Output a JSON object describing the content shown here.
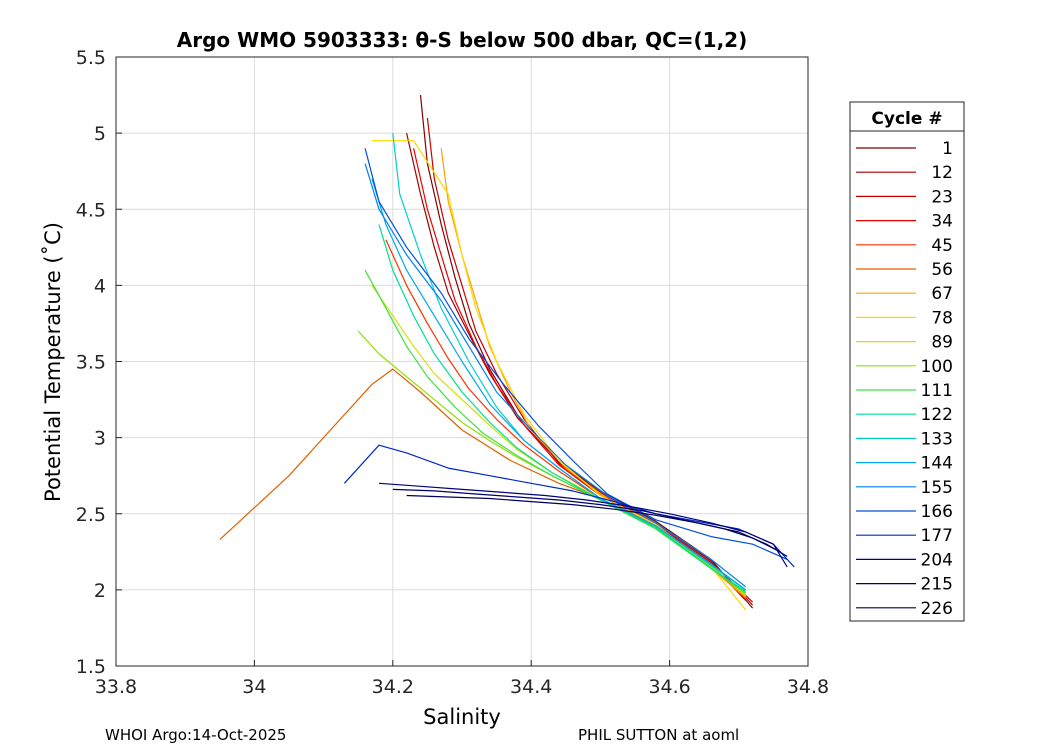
{
  "chart_data": {
    "type": "line",
    "title": "Argo WMO 5903333: θ-S below 500 dbar,  QC=(1,2)",
    "xlabel": "Salinity",
    "ylabel": "Potential Temperature (˚C)",
    "xlim": [
      33.8,
      34.8
    ],
    "ylim": [
      1.5,
      5.5
    ],
    "xticks": [
      "33.8",
      "34",
      "34.2",
      "34.4",
      "34.6",
      "34.8"
    ],
    "yticks": [
      "1.5",
      "2",
      "2.5",
      "3",
      "3.5",
      "4",
      "4.5",
      "5",
      "5.5"
    ],
    "grid": true,
    "legend_position": "right",
    "legend_title": "Cycle #",
    "series": [
      {
        "name": "1",
        "color": "#800000",
        "x": [
          34.24,
          34.25,
          34.27,
          34.29,
          34.31,
          34.34,
          34.38,
          34.44,
          34.5,
          34.58,
          34.66,
          34.72
        ],
        "y": [
          5.25,
          4.8,
          4.4,
          4.05,
          3.75,
          3.45,
          3.15,
          2.85,
          2.65,
          2.45,
          2.2,
          1.88
        ]
      },
      {
        "name": "12",
        "color": "#a00000",
        "x": [
          34.22,
          34.24,
          34.26,
          34.28,
          34.31,
          34.34,
          34.38,
          34.44,
          34.5,
          34.58,
          34.66,
          34.72
        ],
        "y": [
          5.0,
          4.6,
          4.25,
          3.95,
          3.68,
          3.42,
          3.13,
          2.84,
          2.64,
          2.44,
          2.19,
          1.9
        ]
      },
      {
        "name": "23",
        "color": "#c80000",
        "x": [
          34.25,
          34.26,
          34.28,
          34.3,
          34.32,
          34.35,
          34.39,
          34.44,
          34.5,
          34.58,
          34.66,
          34.72
        ],
        "y": [
          5.1,
          4.7,
          4.3,
          4.0,
          3.7,
          3.42,
          3.12,
          2.83,
          2.63,
          2.43,
          2.18,
          1.92
        ]
      },
      {
        "name": "34",
        "color": "#f00000",
        "x": [
          34.23,
          34.25,
          34.27,
          34.29,
          34.32,
          34.35,
          34.39,
          34.44,
          34.5,
          34.58,
          34.66,
          34.71
        ],
        "y": [
          4.9,
          4.5,
          4.2,
          3.9,
          3.6,
          3.35,
          3.08,
          2.82,
          2.62,
          2.42,
          2.17,
          1.93
        ]
      },
      {
        "name": "45",
        "color": "#ff3000",
        "x": [
          34.19,
          34.22,
          34.25,
          34.28,
          34.31,
          34.35,
          34.39,
          34.44,
          34.5,
          34.58,
          34.66,
          34.71
        ],
        "y": [
          4.3,
          4.0,
          3.75,
          3.52,
          3.32,
          3.12,
          2.95,
          2.78,
          2.6,
          2.41,
          2.16,
          1.95
        ]
      },
      {
        "name": "56",
        "color": "#e06000",
        "x": [
          33.95,
          34.05,
          34.12,
          34.17,
          34.2,
          34.24,
          34.3,
          34.37,
          34.44,
          34.5,
          34.58,
          34.66,
          34.71
        ],
        "y": [
          2.33,
          2.75,
          3.1,
          3.35,
          3.45,
          3.3,
          3.05,
          2.85,
          2.7,
          2.6,
          2.42,
          2.15,
          1.96
        ]
      },
      {
        "name": "67",
        "color": "#ffa000",
        "x": [
          34.27,
          34.28,
          34.3,
          34.32,
          34.34,
          34.37,
          34.4,
          34.45,
          34.51,
          34.58,
          34.66,
          34.71
        ],
        "y": [
          4.9,
          4.55,
          4.2,
          3.9,
          3.6,
          3.3,
          3.05,
          2.8,
          2.6,
          2.42,
          2.14,
          1.95
        ]
      },
      {
        "name": "78",
        "color": "#ffd700",
        "x": [
          34.17,
          34.23,
          34.28,
          34.3,
          34.32,
          34.35,
          34.39,
          34.44,
          34.5,
          34.58,
          34.66,
          34.71
        ],
        "y": [
          4.95,
          4.95,
          4.6,
          4.2,
          3.85,
          3.5,
          3.15,
          2.85,
          2.62,
          2.43,
          2.15,
          1.87
        ]
      },
      {
        "name": "89",
        "color": "#d0e000",
        "x": [
          34.17,
          34.2,
          34.23,
          34.26,
          34.3,
          34.34,
          34.38,
          34.43,
          34.5,
          34.58,
          34.66,
          34.71
        ],
        "y": [
          4.0,
          3.8,
          3.6,
          3.42,
          3.25,
          3.08,
          2.92,
          2.77,
          2.6,
          2.42,
          2.16,
          1.96
        ]
      },
      {
        "name": "100",
        "color": "#90e000",
        "x": [
          34.15,
          34.18,
          34.22,
          34.26,
          34.3,
          34.34,
          34.38,
          34.43,
          34.5,
          34.58,
          34.66,
          34.71
        ],
        "y": [
          3.7,
          3.55,
          3.4,
          3.25,
          3.1,
          2.98,
          2.87,
          2.75,
          2.59,
          2.41,
          2.15,
          1.97
        ]
      },
      {
        "name": "111",
        "color": "#40e040",
        "x": [
          34.16,
          34.19,
          34.22,
          34.25,
          34.29,
          34.33,
          34.38,
          34.43,
          34.5,
          34.58,
          34.66,
          34.71
        ],
        "y": [
          4.1,
          3.85,
          3.6,
          3.4,
          3.2,
          3.03,
          2.88,
          2.75,
          2.59,
          2.4,
          2.14,
          1.98
        ]
      },
      {
        "name": "122",
        "color": "#00e090",
        "x": [
          34.18,
          34.2,
          34.23,
          34.26,
          34.3,
          34.34,
          34.38,
          34.43,
          34.5,
          34.58,
          34.66,
          34.71
        ],
        "y": [
          4.4,
          4.1,
          3.8,
          3.55,
          3.3,
          3.1,
          2.93,
          2.77,
          2.59,
          2.41,
          2.14,
          1.99
        ]
      },
      {
        "name": "133",
        "color": "#00d0d0",
        "x": [
          34.2,
          34.21,
          34.24,
          34.27,
          34.31,
          34.35,
          34.39,
          34.44,
          34.5,
          34.58,
          34.66,
          34.71
        ],
        "y": [
          5.0,
          4.6,
          4.2,
          3.85,
          3.5,
          3.2,
          2.98,
          2.8,
          2.6,
          2.42,
          2.16,
          2.0
        ]
      },
      {
        "name": "144",
        "color": "#00a8e8",
        "x": [
          34.17,
          34.19,
          34.22,
          34.26,
          34.3,
          34.34,
          34.39,
          34.44,
          34.5,
          34.58,
          34.66,
          34.71
        ],
        "y": [
          4.7,
          4.4,
          4.1,
          3.8,
          3.5,
          3.22,
          2.98,
          2.8,
          2.6,
          2.42,
          2.17,
          2.0
        ]
      },
      {
        "name": "155",
        "color": "#0080f0",
        "x": [
          34.16,
          34.18,
          34.22,
          34.27,
          34.31,
          34.35,
          34.4,
          34.45,
          34.51,
          34.58,
          34.66,
          34.71
        ],
        "y": [
          4.8,
          4.5,
          4.2,
          3.9,
          3.6,
          3.3,
          3.05,
          2.82,
          2.62,
          2.44,
          2.2,
          2.02
        ]
      },
      {
        "name": "166",
        "color": "#0050e0",
        "x": [
          34.16,
          34.18,
          34.22,
          34.27,
          34.31,
          34.36,
          34.41,
          34.46,
          34.51,
          34.58,
          34.66,
          34.72,
          34.77
        ],
        "y": [
          4.9,
          4.55,
          4.25,
          3.95,
          3.65,
          3.35,
          3.08,
          2.85,
          2.63,
          2.46,
          2.35,
          2.3,
          2.2
        ]
      },
      {
        "name": "177",
        "color": "#0028c8",
        "x": [
          34.13,
          34.18,
          34.22,
          34.28,
          34.34,
          34.4,
          34.46,
          34.52,
          34.58,
          34.64,
          34.7,
          34.75,
          34.78
        ],
        "y": [
          2.7,
          2.95,
          2.9,
          2.8,
          2.75,
          2.7,
          2.65,
          2.58,
          2.5,
          2.45,
          2.4,
          2.3,
          2.15
        ]
      },
      {
        "name": "204",
        "color": "#000080",
        "x": [
          34.18,
          34.24,
          34.3,
          34.36,
          34.42,
          34.48,
          34.54,
          34.6,
          34.66,
          34.71,
          34.75,
          34.77
        ],
        "y": [
          2.7,
          2.68,
          2.66,
          2.64,
          2.62,
          2.59,
          2.55,
          2.5,
          2.44,
          2.38,
          2.3,
          2.15
        ]
      },
      {
        "name": "215",
        "color": "#000070",
        "x": [
          34.2,
          34.26,
          34.32,
          34.38,
          34.44,
          34.5,
          34.56,
          34.62,
          34.68,
          34.72,
          34.76
        ],
        "y": [
          2.66,
          2.65,
          2.63,
          2.61,
          2.59,
          2.56,
          2.52,
          2.46,
          2.4,
          2.34,
          2.25
        ]
      },
      {
        "name": "226",
        "color": "#000060",
        "x": [
          34.22,
          34.28,
          34.34,
          34.4,
          34.46,
          34.52,
          34.58,
          34.64,
          34.7,
          34.74,
          34.77
        ],
        "y": [
          2.62,
          2.61,
          2.6,
          2.58,
          2.56,
          2.53,
          2.49,
          2.44,
          2.38,
          2.3,
          2.22
        ]
      }
    ]
  },
  "footer": {
    "left": "WHOI Argo:14-Oct-2025",
    "right": "PHIL SUTTON at aoml"
  }
}
